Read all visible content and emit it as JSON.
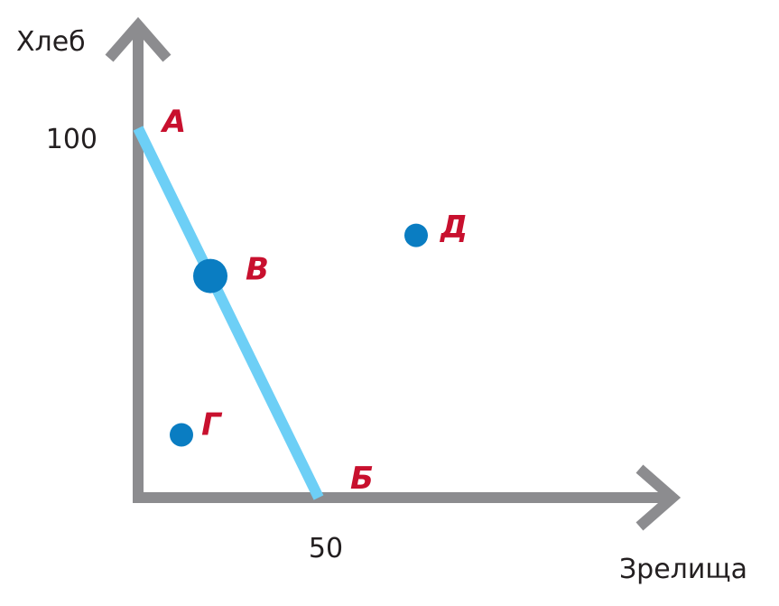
{
  "chart_data": {
    "type": "line",
    "xlabel": "Зрелища",
    "ylabel": "Хлеб",
    "x_ticks": [
      50
    ],
    "y_ticks": [
      100
    ],
    "xlim": [
      0,
      105
    ],
    "ylim": [
      0,
      118
    ],
    "series": [
      {
        "x": [
          0,
          50
        ],
        "y": [
          100,
          0
        ]
      }
    ],
    "points": [
      {
        "label": "А",
        "x": 0,
        "y": 100,
        "marker": false
      },
      {
        "label": "Б",
        "x": 50,
        "y": 0,
        "marker": false
      },
      {
        "label": "В",
        "x": 20,
        "y": 60,
        "marker": true,
        "emphasis": true
      },
      {
        "label": "Г",
        "x": 12,
        "y": 17,
        "marker": true
      },
      {
        "label": "Д",
        "x": 77,
        "y": 71,
        "marker": true
      }
    ],
    "colors": {
      "axis": "#8c8c8f",
      "line": "#6dcff6",
      "point": "#0a7dc2",
      "point_label": "#c8102e",
      "text": "#231f20"
    }
  }
}
